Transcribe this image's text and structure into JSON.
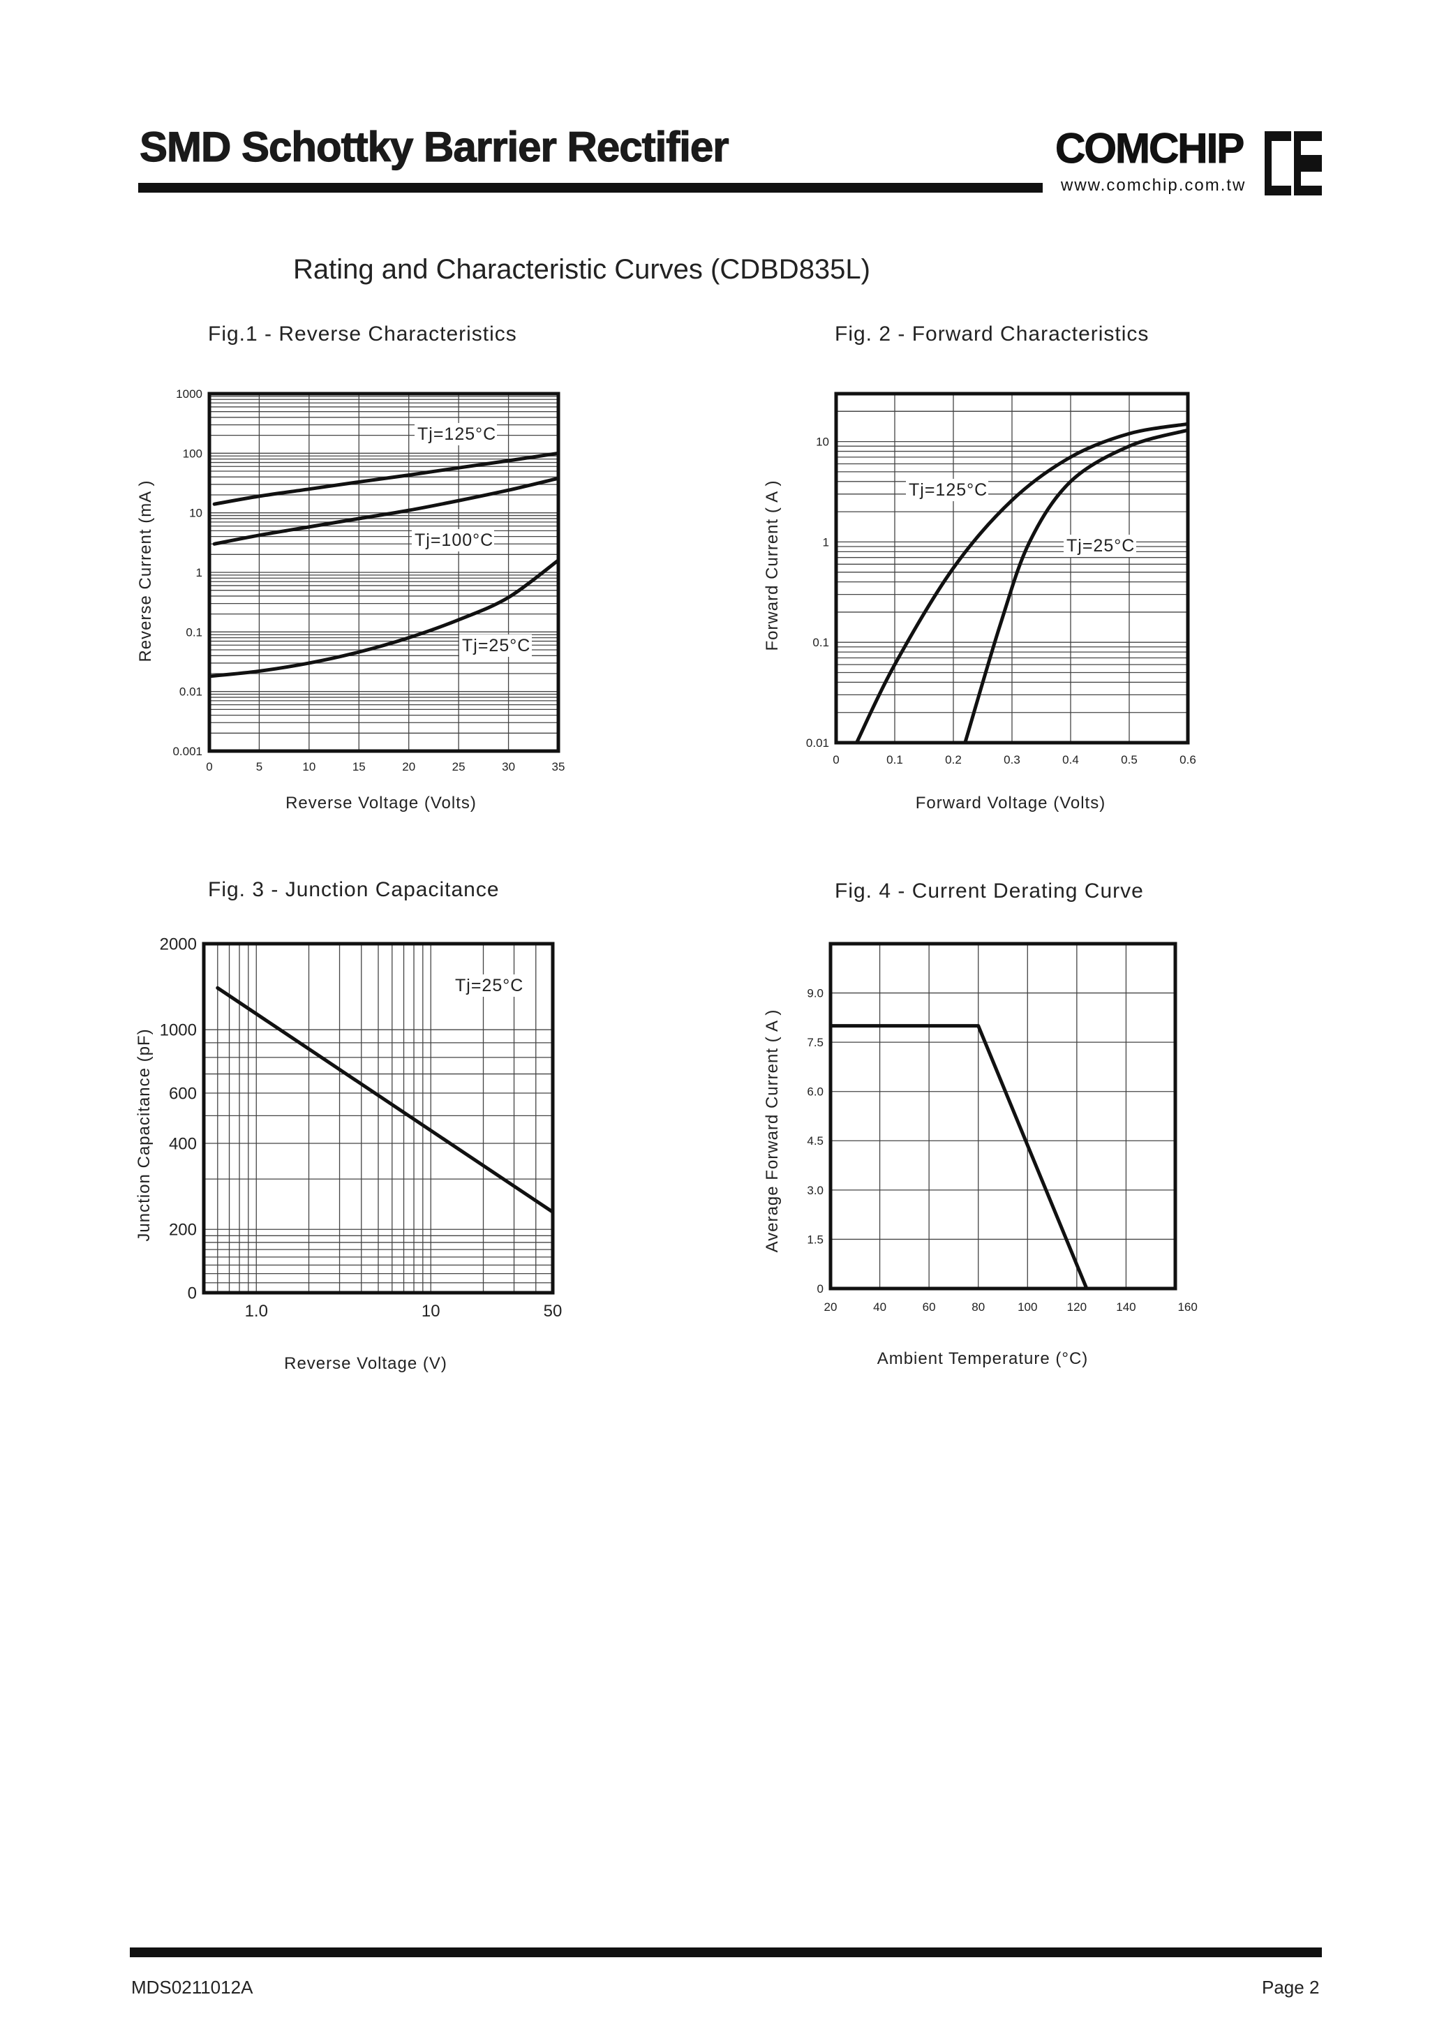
{
  "header": {
    "title": "SMD Schottky Barrier Rectifier",
    "logo_text": "COMCHIP",
    "logo_url": "www.comchip.com.tw",
    "logo_icon": "comchip-ce-logo-icon"
  },
  "subtitle": "Rating and Characteristic Curves (CDBD835L)",
  "figures": [
    {
      "title": "Fig.1 -  Reverse Characteristics",
      "xlabel": "Reverse Voltage (Volts)",
      "ylabel": "Reverse Current (mA )"
    },
    {
      "title": "Fig. 2 -  Forward Characteristics",
      "xlabel": "Forward Voltage (Volts)",
      "ylabel": "Forward Current ( A )"
    },
    {
      "title": "Fig. 3 -  Junction Capacitance",
      "xlabel": "Reverse Voltage (V)",
      "ylabel": "Junction Capacitance  (pF)"
    },
    {
      "title": "Fig. 4 - Current Derating Curve",
      "xlabel": "Ambient Temperature (°C)",
      "ylabel": "Average Forward Current ( A )"
    }
  ],
  "chart_data": [
    {
      "type": "line",
      "title": "Fig.1 -  Reverse Characteristics",
      "xlabel": "Reverse Voltage (Volts)",
      "ylabel": "Reverse Current (mA )",
      "x_ticks": [
        "0",
        "5",
        "10",
        "15",
        "20",
        "25",
        "30",
        "35"
      ],
      "y_ticks": [
        "1000",
        "100",
        "10",
        "1",
        "0.1",
        "0.01",
        "0.001"
      ],
      "y_scale": "log",
      "xlim": [
        0,
        35
      ],
      "ylim": [
        0.001,
        1000
      ],
      "grid": true,
      "series": [
        {
          "name": "Tj=125°C",
          "x": [
            0.5,
            5,
            10,
            15,
            20,
            25,
            30,
            35
          ],
          "y": [
            14,
            19,
            25,
            33,
            43,
            57,
            75,
            100
          ]
        },
        {
          "name": "Tj=100°C",
          "x": [
            0.5,
            5,
            10,
            15,
            20,
            25,
            30,
            35
          ],
          "y": [
            3,
            4.2,
            5.8,
            8,
            11,
            16,
            24,
            38
          ]
        },
        {
          "name": "Tj=25°C",
          "x": [
            0,
            5,
            10,
            15,
            20,
            25,
            30,
            35
          ],
          "y": [
            0.018,
            0.022,
            0.03,
            0.046,
            0.08,
            0.16,
            0.38,
            1.6
          ]
        }
      ]
    },
    {
      "type": "line",
      "title": "Fig. 2 -  Forward Characteristics",
      "xlabel": "Forward Voltage (Volts)",
      "ylabel": "Forward Current ( A )",
      "x_ticks": [
        "0",
        "0.1",
        "0.2",
        "0.3",
        "0.4",
        "0.5",
        "0.6"
      ],
      "y_ticks": [
        "10",
        "1",
        "0.1",
        "0.01"
      ],
      "y_scale": "log",
      "xlim": [
        0,
        0.6
      ],
      "ylim": [
        0.01,
        30
      ],
      "grid": true,
      "series": [
        {
          "name": "Tj=125°C",
          "x": [
            0.035,
            0.1,
            0.2,
            0.3,
            0.4,
            0.5,
            0.6
          ],
          "y": [
            0.01,
            0.06,
            0.55,
            2.6,
            7,
            12,
            15
          ]
        },
        {
          "name": "Tj=25°C",
          "x": [
            0.22,
            0.28,
            0.33,
            0.4,
            0.5,
            0.6
          ],
          "y": [
            0.01,
            0.15,
            1.0,
            4.0,
            9,
            13
          ]
        }
      ]
    },
    {
      "type": "line",
      "title": "Fig. 3 -  Junction Capacitance",
      "xlabel": "Reverse Voltage (V)",
      "ylabel": "Junction Capacitance  (pF)",
      "x_ticks": [
        "1.0",
        "10",
        "50"
      ],
      "y_ticks": [
        "2000",
        "1000",
        "600",
        "400",
        "200",
        "0"
      ],
      "x_scale": "log",
      "y_scale": "log",
      "xlim": [
        0.5,
        50
      ],
      "grid": true,
      "series": [
        {
          "name": "Tj=25°C",
          "x": [
            0.6,
            50
          ],
          "y": [
            1400,
            230
          ]
        }
      ]
    },
    {
      "type": "line",
      "title": "Fig. 4 - Current Derating Curve",
      "xlabel": "Ambient Temperature (°C)",
      "ylabel": "Average Forward Current ( A )",
      "x_ticks": [
        "20",
        "40",
        "60",
        "80",
        "100",
        "120",
        "140",
        "160"
      ],
      "y_ticks": [
        "9.0",
        "7.5",
        "6.0",
        "4.5",
        "3.0",
        "1.5",
        "0"
      ],
      "xlim": [
        20,
        160
      ],
      "ylim": [
        0,
        10.5
      ],
      "grid": true,
      "series": [
        {
          "name": "",
          "x": [
            20,
            80,
            124
          ],
          "y": [
            8,
            8,
            0
          ]
        }
      ]
    }
  ],
  "footer": {
    "doc_id": "MDS0211012A",
    "page": "Page 2"
  }
}
